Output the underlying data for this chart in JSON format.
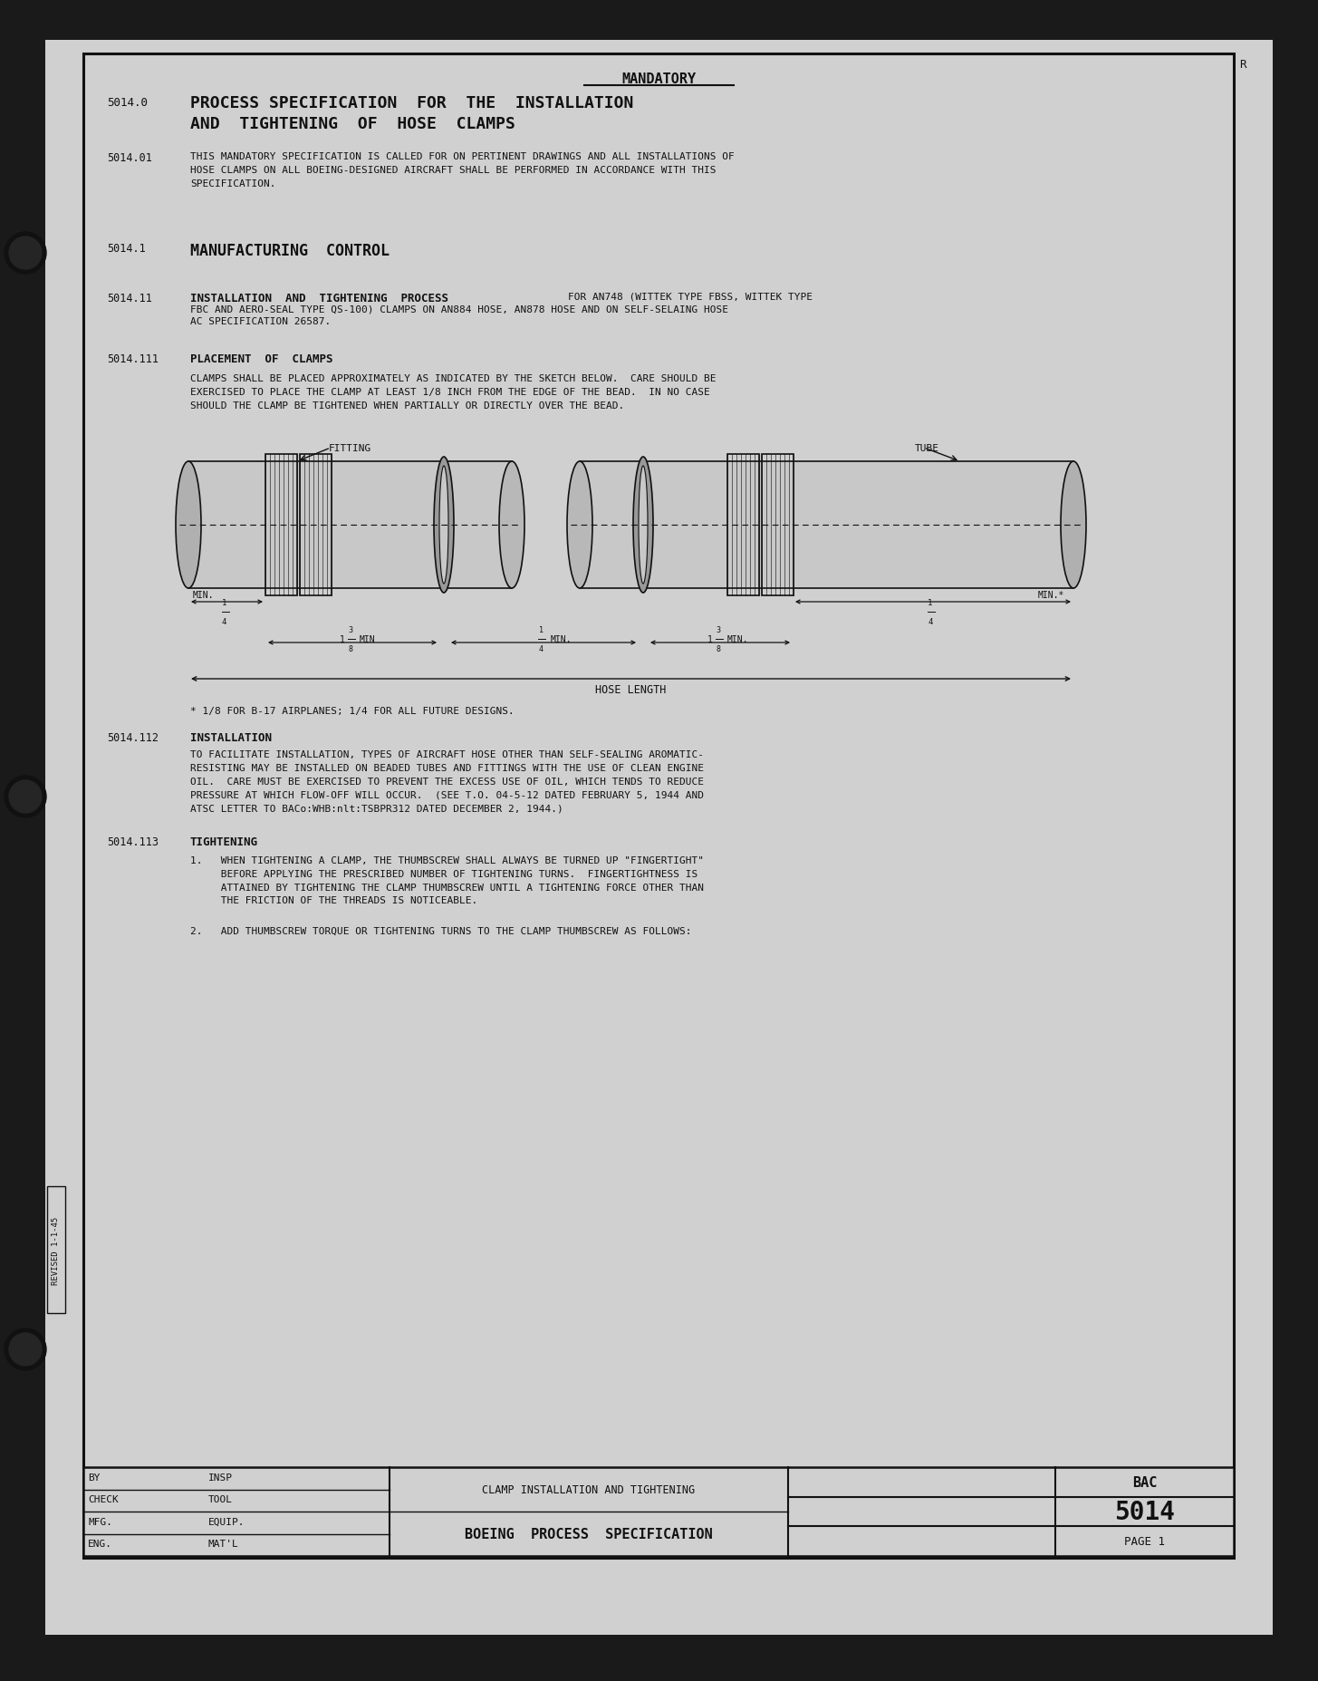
{
  "bg_dark": "#1a1a1a",
  "paper_color": "#d2d2d2",
  "border_color": "#111111",
  "text_color": "#111111",
  "title_mandatory": "MANDATORY",
  "section_num_main": "5014.0",
  "title_main_line1": "PROCESS SPECIFICATION  FOR  THE  INSTALLATION",
  "title_main_line2": "AND  TIGHTENING  OF  HOSE  CLAMPS",
  "sec_5014_01": "5014.01",
  "text_5014_01": "THIS MANDATORY SPECIFICATION IS CALLED FOR ON PERTINENT DRAWINGS AND ALL INSTALLATIONS OF\nHOSE CLAMPS ON ALL BOEING-DESIGNED AIRCRAFT SHALL BE PERFORMED IN ACCORDANCE WITH THIS\nSPECIFICATION.",
  "sec_5014_1": "5014.1",
  "title_5014_1": "MANUFACTURING  CONTROL",
  "sec_5014_11": "5014.11",
  "title_5014_11_bold": "INSTALLATION  AND  TIGHTENING  PROCESS",
  "text_5014_11_rest": " FOR AN748 (WITTEK TYPE FBSS, WITTEK TYPE\nFBC AND AERO-SEAL TYPE QS-100) CLAMPS ON AN884 HOSE, AN878 HOSE AND ON SELF-SELAING HOSE\nAC SPECIFICATION 26587.",
  "sec_5014_111": "5014.111",
  "title_5014_111": "PLACEMENT  OF  CLAMPS",
  "text_5014_111": "CLAMPS SHALL BE PLACED APPROXIMATELY AS INDICATED BY THE SKETCH BELOW.  CARE SHOULD BE\nEXERCISED TO PLACE THE CLAMP AT LEAST 1/8 INCH FROM THE EDGE OF THE BEAD.  IN NO CASE\nSHOULD THE CLAMP BE TIGHTENED WHEN PARTIALLY OR DIRECTLY OVER THE BEAD.",
  "sec_5014_112": "5014.112",
  "title_5014_112": "INSTALLATION",
  "text_5014_112": "TO FACILITATE INSTALLATION, TYPES OF AIRCRAFT HOSE OTHER THAN SELF-SEALING AROMATIC-\nRESISTING MAY BE INSTALLED ON BEADED TUBES AND FITTINGS WITH THE USE OF CLEAN ENGINE\nOIL.  CARE MUST BE EXERCISED TO PREVENT THE EXCESS USE OF OIL, WHICH TENDS TO REDUCE\nPRESSURE AT WHICH FLOW-OFF WILL OCCUR.  (SEE T.O. 04-5-12 DATED FEBRUARY 5, 1944 AND\nATSC LETTER TO BACo:WHB:nlt:TSBPR312 DATED DECEMBER 2, 1944.)",
  "sec_5014_113": "5014.113",
  "title_5014_113": "TIGHTENING",
  "text_5014_113_1": "1.   WHEN TIGHTENING A CLAMP, THE THUMBSCREW SHALL ALWAYS BE TURNED UP \"FINGERTIGHT\"\n     BEFORE APPLYING THE PRESCRIBED NUMBER OF TIGHTENING TURNS.  FINGERTIGHTNESS IS\n     ATTAINED BY TIGHTENING THE CLAMP THUMBSCREW UNTIL A TIGHTENING FORCE OTHER THAN\n     THE FRICTION OF THE THREADS IS NOTICEABLE.",
  "text_5014_113_2": "2.   ADD THUMBSCREW TORQUE OR TIGHTENING TURNS TO THE CLAMP THUMBSCREW AS FOLLOWS:",
  "footer_title": "CLAMP INSTALLATION AND TIGHTENING",
  "footer_bac": "BAC",
  "footer_num": "5014",
  "footer_boeing": "BOEING  PROCESS  SPECIFICATION",
  "footer_page": "PAGE 1",
  "sidebar_text": "REVISED 1-1-45",
  "r_label": "R"
}
